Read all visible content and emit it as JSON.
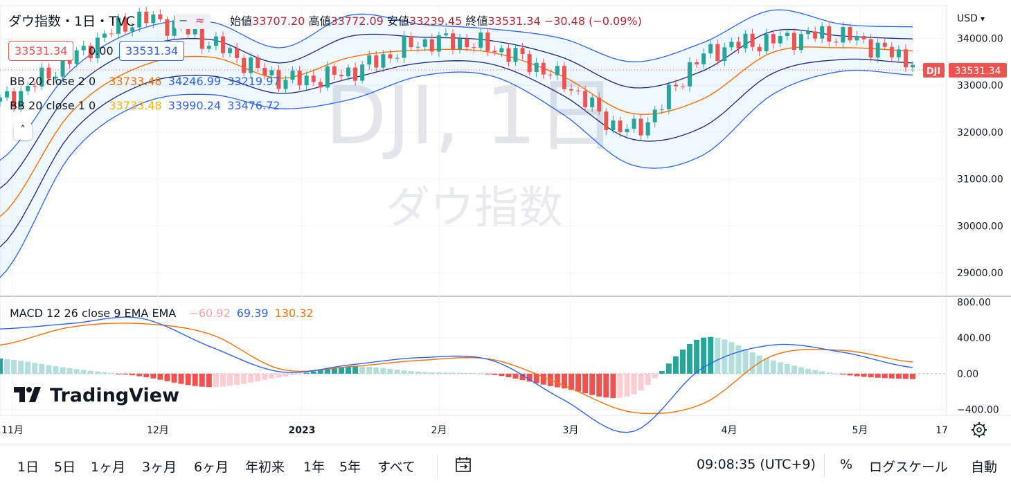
{
  "header": {
    "symbol_title": "ダウ指数・1日・TVC",
    "ohlc": {
      "open_label": "始値",
      "open": "33707.20",
      "high_label": "高値",
      "high": "33772.09",
      "low_label": "安値",
      "low": "33239.45",
      "close_label": "終値",
      "close": "33531.34",
      "change": "−30.48 (−0.09%)"
    },
    "bid": "33531.34",
    "spread": "0.00",
    "ask": "33531.34"
  },
  "indicators": {
    "bb1": {
      "label": "BB 20 close 2 0",
      "basis": "33733.48",
      "upper": "34246.99",
      "lower": "33219.97"
    },
    "bb2": {
      "label": "BB 20 close 1 0",
      "basis": "33733.48",
      "upper": "33990.24",
      "lower": "33476.72"
    },
    "macd": {
      "label": "MACD 12 26 close 9 EMA EMA",
      "hist": "−60.92",
      "macd": "69.39",
      "signal": "130.32"
    }
  },
  "watermark": {
    "ticker": "DJI, 1日",
    "name": "ダウ指数"
  },
  "logo": "TradingView",
  "price_scale": {
    "currency": "USD",
    "ticks": [
      "34000.00",
      "33000.00",
      "32000.00",
      "31000.00",
      "30000.00",
      "29000.00"
    ],
    "last_label": "DJI",
    "last_value": "33531.34"
  },
  "macd_scale": {
    "ticks": [
      "800.00",
      "400.00",
      "0.00",
      "−400.00"
    ]
  },
  "time_axis": {
    "ticks": [
      "11月",
      "12月",
      "2023",
      "2月",
      "3月",
      "4月",
      "5月",
      "17"
    ]
  },
  "colors": {
    "up": "#26a69a",
    "down": "#ef5350",
    "basis": "#ff6d00",
    "band": "#2962ff",
    "macd": "#2962ff",
    "signal": "#ff6d00",
    "hist_up": "#26a69a",
    "hist_down": "#ef5350"
  },
  "toolbar": {
    "ranges": [
      "1日",
      "5日",
      "1ヶ月",
      "3ヶ月",
      "6ヶ月",
      "年初来",
      "1年",
      "5年",
      "すべて"
    ],
    "clock": "09:08:35 (UTC+9)",
    "percent": "%",
    "log": "ログスケール",
    "auto": "自動"
  },
  "chart_data": {
    "type": "candlestick",
    "title": "ダウ指数・1日・TVC",
    "x": [
      "2022-11-01",
      "2022-11-15",
      "2022-12-01",
      "2022-12-14",
      "2023-01-03",
      "2023-01-18",
      "2023-02-01",
      "2023-02-15",
      "2023-03-01",
      "2023-03-15",
      "2023-04-03",
      "2023-04-17",
      "2023-05-01",
      "2023-05-15"
    ],
    "close": [
      32650,
      33550,
      34400,
      33900,
      33140,
      33300,
      33900,
      33800,
      33100,
      32050,
      33600,
      33950,
      34050,
      33531.34
    ],
    "bb_basis": [
      30200,
      32400,
      33400,
      33600,
      33150,
      33600,
      33750,
      33700,
      33200,
      32400,
      32700,
      33700,
      33800,
      33733.48
    ],
    "bb_upper": [
      31400,
      33300,
      34200,
      34350,
      33800,
      34500,
      34300,
      34200,
      34000,
      33500,
      33900,
      34600,
      34300,
      34246.99
    ],
    "bb_lower": [
      28900,
      31500,
      32600,
      32800,
      32500,
      32700,
      33200,
      33200,
      32400,
      31300,
      31500,
      32800,
      33300,
      33219.97
    ],
    "macd": [
      500,
      560,
      620,
      300,
      20,
      100,
      180,
      150,
      -280,
      -650,
      60,
      320,
      240,
      69.39
    ],
    "signal": [
      320,
      520,
      560,
      440,
      50,
      80,
      150,
      160,
      -120,
      -430,
      -340,
      200,
      260,
      130.32
    ],
    "histogram": [
      170,
      60,
      -30,
      -150,
      -40,
      80,
      20,
      -10,
      -160,
      -240,
      400,
      150,
      -10,
      -60.92
    ],
    "price_ylim": [
      28500,
      34700
    ],
    "macd_ylim": [
      -450,
      850
    ],
    "grid": true,
    "legend": "top-left"
  }
}
